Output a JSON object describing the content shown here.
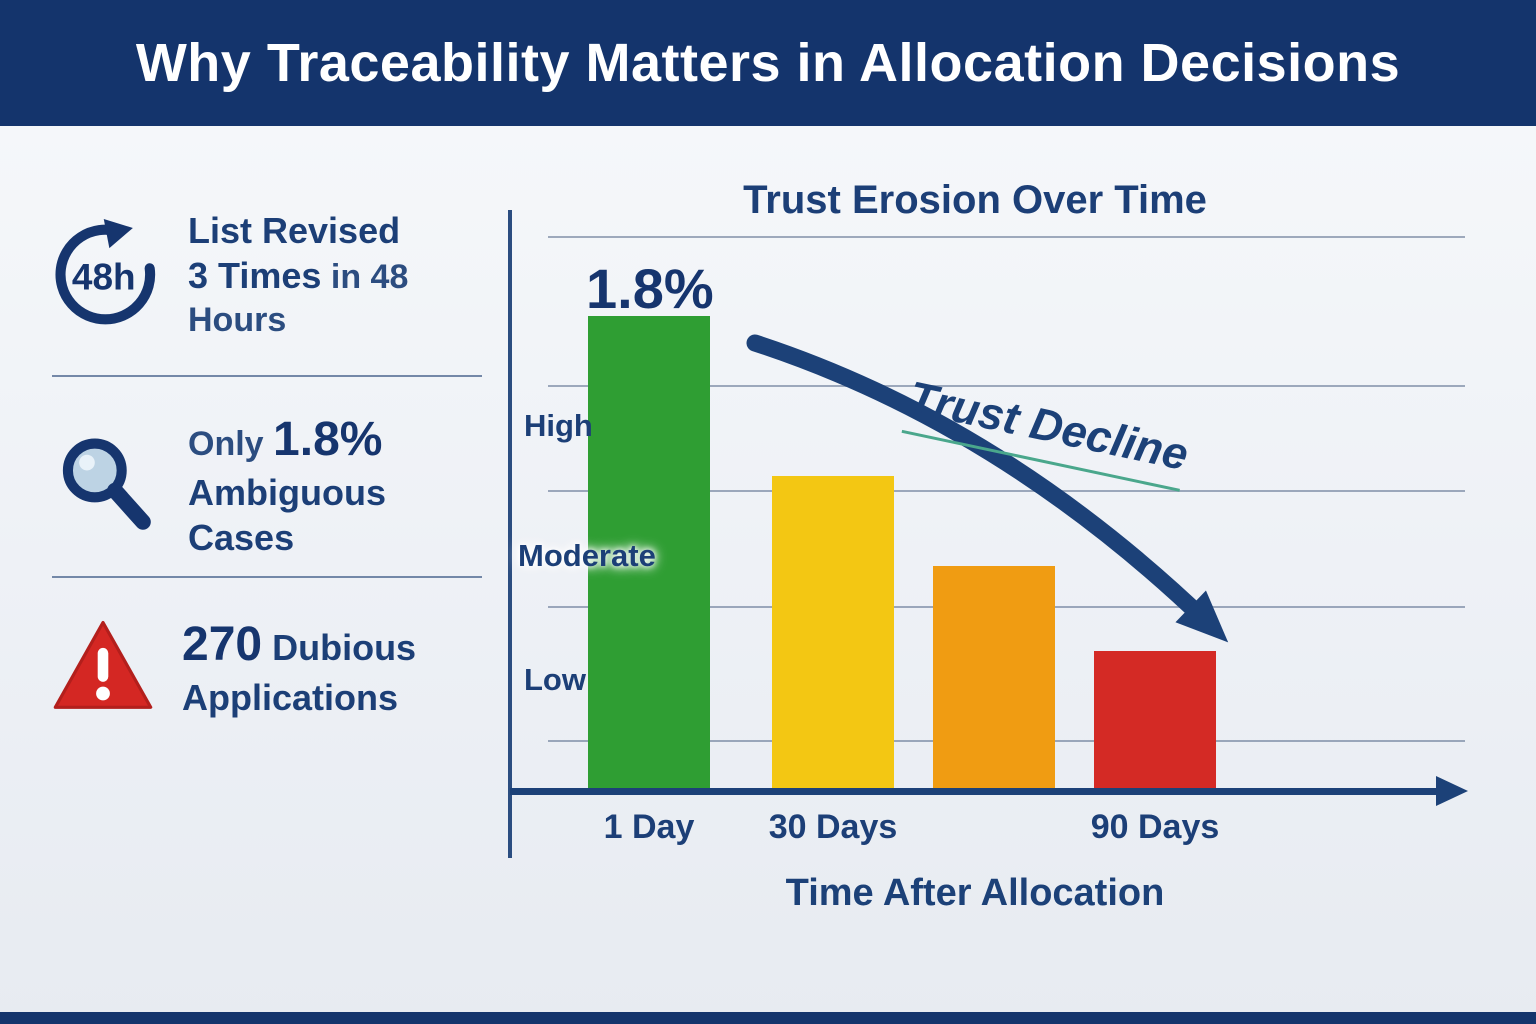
{
  "header": {
    "title": "Why Traceability Matters in Allocation Decisions"
  },
  "stats": [
    {
      "icon": "clock-48h-icon",
      "icon_text": "48h",
      "line1": "List Revised",
      "line2_bold": "3 Times",
      "line2_rest": " in 48 Hours"
    },
    {
      "icon": "magnifier-icon",
      "line1_prefix": "Only ",
      "line1_big": "1.8%",
      "line2": "Ambiguous Cases"
    },
    {
      "icon": "warning-triangle-icon",
      "line1_big": "270",
      "line1_rest": " Dubious",
      "line2": "Applications"
    }
  ],
  "chart_data": {
    "type": "bar",
    "title": "Trust Erosion Over Time",
    "xlabel": "Time After Allocation",
    "ylabel": "",
    "y_tick_labels": [
      "High",
      "Moderate",
      "Low"
    ],
    "bar_value_label": "1.8%",
    "trend_label": "Trust Decline",
    "ylim": [
      0,
      100
    ],
    "grid": true,
    "legend": "none",
    "bars": [
      {
        "label": "1 Day",
        "value": 100,
        "color": "#2f9e33"
      },
      {
        "label": "30 Days",
        "value": 66,
        "color": "#f3c713"
      },
      {
        "label": "",
        "value": 47,
        "color": "#f09c12"
      },
      {
        "label": "90 Days",
        "value": 29,
        "color": "#d42a25"
      }
    ],
    "colors": {
      "axis": "#1c4178",
      "trend_arrow": "#1c4178",
      "header": "#14346c"
    }
  }
}
